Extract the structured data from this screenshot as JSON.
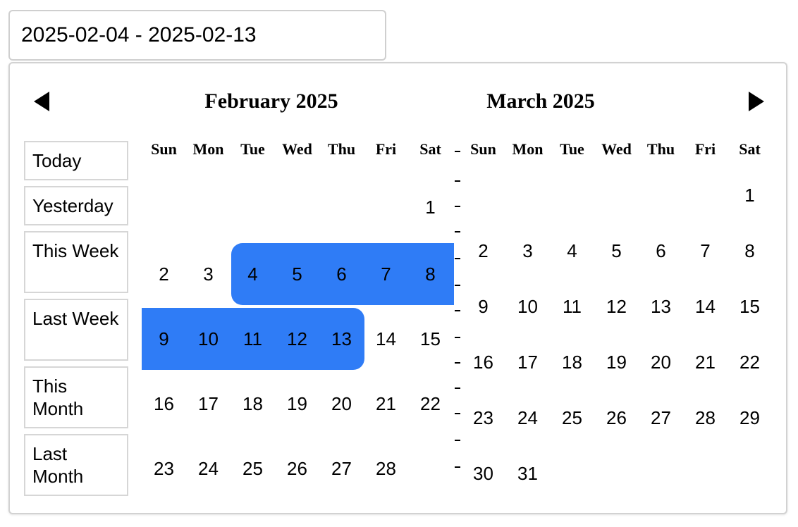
{
  "input": {
    "value": "2025-02-04 - 2025-02-13"
  },
  "nav": {
    "prev_icon": "triangle-left-icon",
    "next_icon": "triangle-right-icon"
  },
  "presets": [
    {
      "label": "Today"
    },
    {
      "label": "Yesterday"
    },
    {
      "label": "This Week"
    },
    {
      "label": "Last Week"
    },
    {
      "label": "This Month"
    },
    {
      "label": "Last Month"
    }
  ],
  "weekdays": [
    "Sun",
    "Mon",
    "Tue",
    "Wed",
    "Thu",
    "Fri",
    "Sat"
  ],
  "calendars": [
    {
      "title": "February 2025",
      "start_weekday": 6,
      "days_in_month": 28,
      "selected_range": [
        4,
        13
      ]
    },
    {
      "title": "March 2025",
      "start_weekday": 6,
      "days_in_month": 31,
      "selected_range": []
    }
  ],
  "colors": {
    "selection": "#2f7cf6",
    "border": "#d2d2d2"
  }
}
